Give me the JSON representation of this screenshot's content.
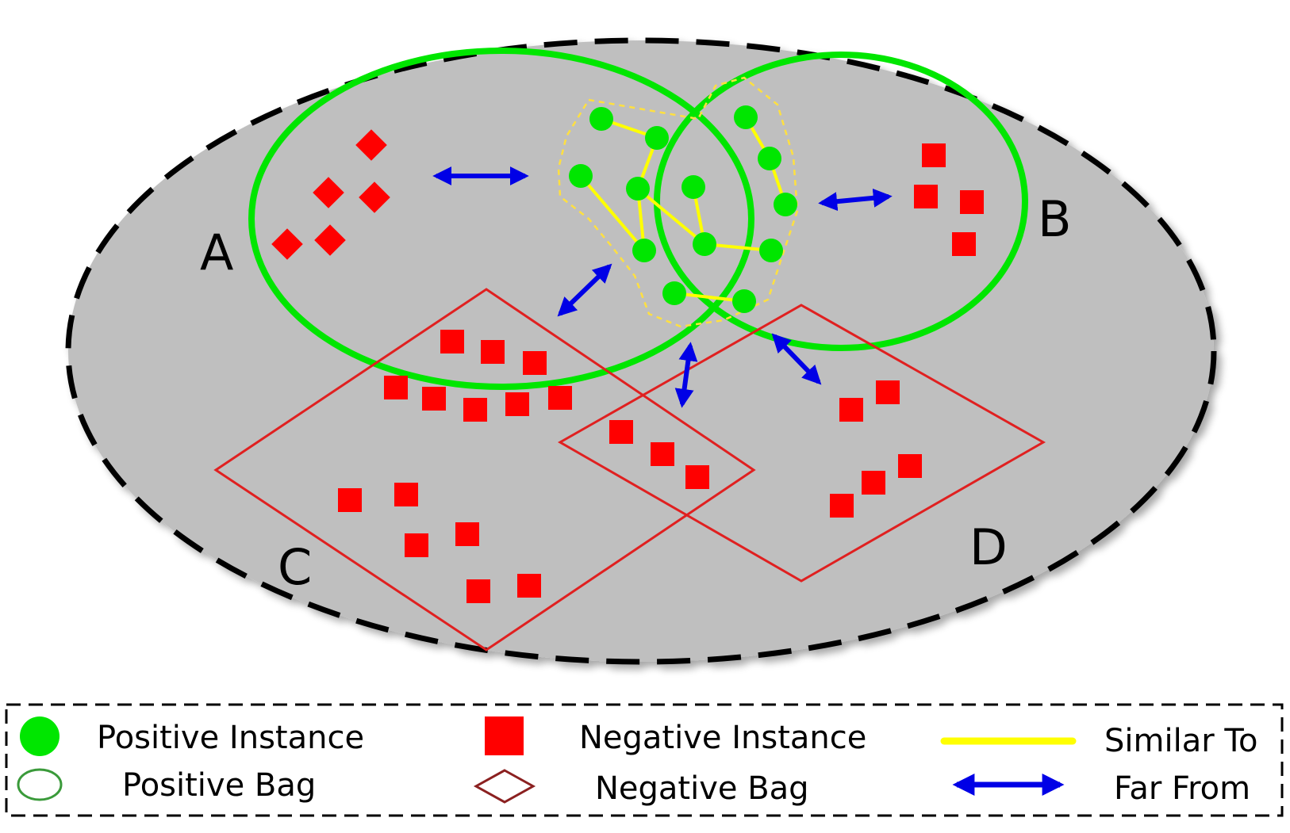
{
  "colors": {
    "space_fill": "#bfbfbf",
    "positive": "#00e600",
    "negative": "#ff0000",
    "negative_bag_stroke": "#e02020",
    "similar_line": "#ffff00",
    "far_arrow": "#0000e6",
    "cluster_outline": "#ffe040",
    "border": "#000000"
  },
  "bags": {
    "a_label": "A",
    "b_label": "B",
    "c_label": "C",
    "d_label": "D"
  },
  "legend": {
    "positive_instance": "Positive Instance",
    "positive_bag": "Positive Bag",
    "negative_instance": "Negative Instance",
    "negative_bag": "Negative Bag",
    "similar_to": "Similar To",
    "far_from": "Far From"
  },
  "icons": {
    "positive_instance": "green-circle-icon",
    "positive_bag": "green-ellipse-icon",
    "negative_instance": "red-square-icon",
    "negative_bag": "diamond-icon",
    "similar_to": "yellow-line-icon",
    "far_from": "double-arrow-icon"
  }
}
